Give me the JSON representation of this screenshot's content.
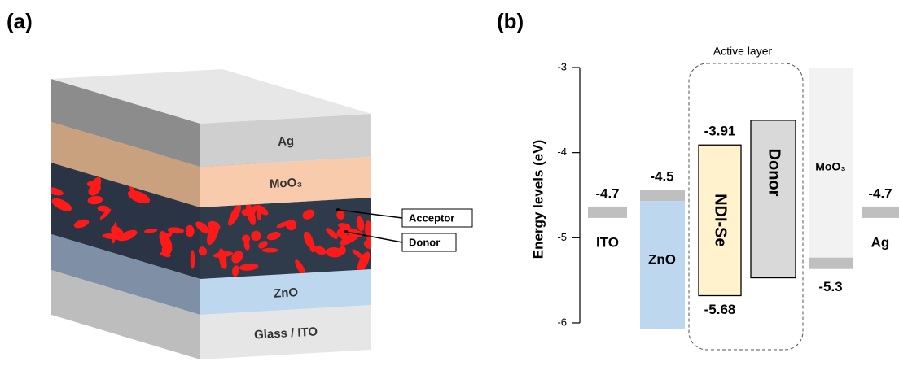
{
  "panel_a": {
    "label": "(a)",
    "layers": [
      "Ag",
      "MoO₃",
      "ZnO",
      "Glass / ITO"
    ],
    "callouts": [
      "Acceptor",
      "Donor"
    ]
  },
  "panel_b": {
    "label": "(b)",
    "y_label": "Energy levels (eV)",
    "ylim": [
      -6,
      -3
    ],
    "yticks": [
      -3,
      -4,
      -5,
      -6
    ],
    "active_layer": "Active layer",
    "materials": [
      {
        "name": "ITO",
        "levels": [
          -4.7
        ]
      },
      {
        "name": "ZnO",
        "levels": [
          -4.5
        ]
      },
      {
        "name": "NDI-Se",
        "levels": [
          -3.91,
          -5.68
        ]
      },
      {
        "name": "Donor",
        "levels": [
          -3.62,
          -5.47
        ]
      },
      {
        "name": "MoO₃",
        "levels": [
          -5.3
        ]
      },
      {
        "name": "Ag",
        "levels": [
          -4.7
        ]
      }
    ]
  }
}
